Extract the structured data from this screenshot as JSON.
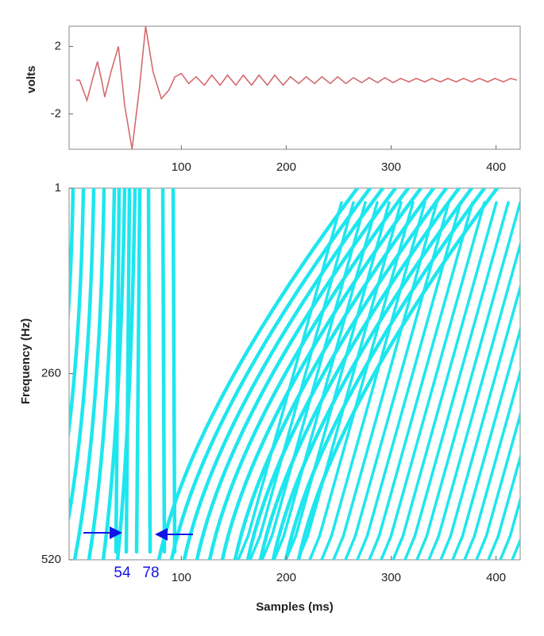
{
  "chart_data": [
    {
      "type": "line",
      "ylabel": "volts",
      "color": "#d46a6f",
      "x": [
        0,
        3,
        10,
        16,
        20,
        24,
        27,
        33,
        40,
        46,
        53,
        60,
        66,
        73,
        81,
        88,
        94,
        100,
        107,
        114,
        122,
        129,
        137,
        144,
        152,
        159,
        167,
        174,
        182,
        189,
        197,
        204,
        212,
        219,
        227,
        234,
        242,
        249,
        257,
        264,
        272,
        279,
        287,
        294,
        302,
        309,
        317,
        324,
        332,
        339,
        347,
        354,
        362,
        369,
        377,
        384,
        392,
        399,
        407,
        414,
        420
      ],
      "values": [
        0,
        0,
        -1.2,
        0.2,
        1.1,
        0,
        -1.0,
        0.5,
        2.0,
        -1.5,
        -4.1,
        -0.5,
        3.2,
        0.5,
        -1.1,
        -0.6,
        0.2,
        0.4,
        -0.2,
        0.2,
        -0.3,
        0.3,
        -0.3,
        0.3,
        -0.3,
        0.3,
        -0.3,
        0.3,
        -0.3,
        0.3,
        -0.3,
        0.2,
        -0.2,
        0.2,
        -0.2,
        0.2,
        -0.2,
        0.2,
        -0.2,
        0.15,
        -0.15,
        0.15,
        -0.15,
        0.15,
        -0.15,
        0.1,
        -0.1,
        0.1,
        -0.1,
        0.1,
        -0.1,
        0.1,
        -0.1,
        0.1,
        -0.1,
        0.1,
        -0.1,
        0.1,
        -0.1,
        0.1,
        0
      ],
      "xlim": [
        -7,
        423
      ],
      "ylim": [
        -4.1,
        3.2
      ],
      "xticks": [
        100,
        200,
        300,
        400
      ],
      "yticks": [
        2,
        -2
      ]
    },
    {
      "type": "image",
      "xlabel": "Samples (ms)",
      "ylabel": "Frequency (Hz)",
      "color": "#1ee6ee",
      "xlim": [
        -7,
        423
      ],
      "ylim": [
        520,
        1
      ],
      "xticks": [
        100,
        200,
        300,
        400
      ],
      "yticks": [
        1,
        260,
        520
      ],
      "markers": [
        54,
        78
      ],
      "marker_color": "#1414e6"
    }
  ]
}
